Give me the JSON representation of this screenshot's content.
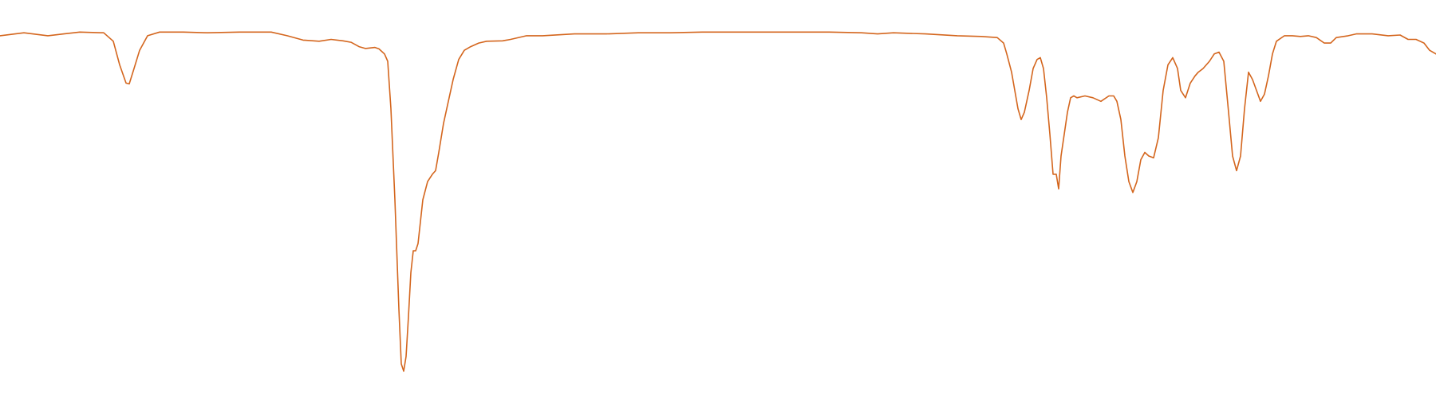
{
  "chart_data": {
    "type": "line",
    "title": "",
    "xlabel": "",
    "ylabel": "",
    "xlim": [
      0,
      1800
    ],
    "ylim": [
      0,
      100
    ],
    "grid": false,
    "legend": "none",
    "axes_visible": false,
    "series": [
      {
        "color": "#d4661e",
        "points": [
          [
            0,
            95.0
          ],
          [
            30,
            95.8
          ],
          [
            60,
            95.0
          ],
          [
            80,
            95.5
          ],
          [
            100,
            96.0
          ],
          [
            130,
            95.8
          ],
          [
            142,
            93.5
          ],
          [
            150,
            87.0
          ],
          [
            158,
            82.0
          ],
          [
            162,
            81.8
          ],
          [
            168,
            86.0
          ],
          [
            175,
            91.0
          ],
          [
            185,
            95.0
          ],
          [
            200,
            96.0
          ],
          [
            230,
            96.0
          ],
          [
            260,
            95.8
          ],
          [
            300,
            96.0
          ],
          [
            340,
            96.0
          ],
          [
            360,
            95.0
          ],
          [
            380,
            93.8
          ],
          [
            400,
            93.5
          ],
          [
            415,
            94.0
          ],
          [
            430,
            93.6
          ],
          [
            440,
            93.2
          ],
          [
            450,
            92.0
          ],
          [
            458,
            91.5
          ],
          [
            470,
            91.8
          ],
          [
            475,
            91.4
          ],
          [
            482,
            90.0
          ],
          [
            486,
            88.0
          ],
          [
            490,
            75.0
          ],
          [
            495,
            50.0
          ],
          [
            500,
            20.0
          ],
          [
            503,
            5.0
          ],
          [
            506,
            3.0
          ],
          [
            509,
            7.0
          ],
          [
            512,
            18.0
          ],
          [
            515,
            30.0
          ],
          [
            518,
            36.0
          ],
          [
            521,
            36.0
          ],
          [
            524,
            38.0
          ],
          [
            530,
            50.0
          ],
          [
            536,
            55.0
          ],
          [
            542,
            57.0
          ],
          [
            546,
            58.0
          ],
          [
            550,
            63.0
          ],
          [
            556,
            71.0
          ],
          [
            562,
            77.0
          ],
          [
            568,
            83.0
          ],
          [
            575,
            88.5
          ],
          [
            582,
            91.0
          ],
          [
            590,
            92.0
          ],
          [
            600,
            93.0
          ],
          [
            610,
            93.5
          ],
          [
            630,
            93.6
          ],
          [
            640,
            94.0
          ],
          [
            660,
            95.0
          ],
          [
            680,
            95.0
          ],
          [
            720,
            95.5
          ],
          [
            760,
            95.5
          ],
          [
            800,
            95.8
          ],
          [
            840,
            95.8
          ],
          [
            880,
            96.0
          ],
          [
            920,
            96.0
          ],
          [
            960,
            96.0
          ],
          [
            1000,
            96.0
          ],
          [
            1040,
            96.0
          ],
          [
            1080,
            95.8
          ],
          [
            1100,
            95.5
          ],
          [
            1120,
            95.8
          ],
          [
            1160,
            95.5
          ],
          [
            1200,
            95.0
          ],
          [
            1230,
            94.8
          ],
          [
            1250,
            94.5
          ],
          [
            1258,
            93.0
          ],
          [
            1262,
            90.0
          ],
          [
            1268,
            85.0
          ],
          [
            1272,
            80.0
          ],
          [
            1276,
            75.0
          ],
          [
            1280,
            72.0
          ],
          [
            1284,
            74.0
          ],
          [
            1290,
            80.0
          ],
          [
            1295,
            86.0
          ],
          [
            1300,
            88.5
          ],
          [
            1304,
            89.0
          ],
          [
            1308,
            86.0
          ],
          [
            1312,
            78.0
          ],
          [
            1316,
            68.0
          ],
          [
            1320,
            57.0
          ],
          [
            1324,
            57.0
          ],
          [
            1327,
            53.0
          ],
          [
            1330,
            62.0
          ],
          [
            1334,
            68.0
          ],
          [
            1338,
            74.0
          ],
          [
            1342,
            78.0
          ],
          [
            1346,
            78.5
          ],
          [
            1350,
            78.0
          ],
          [
            1360,
            78.5
          ],
          [
            1370,
            78.0
          ],
          [
            1380,
            77.0
          ],
          [
            1390,
            78.5
          ],
          [
            1396,
            78.5
          ],
          [
            1400,
            77.0
          ],
          [
            1405,
            72.0
          ],
          [
            1410,
            62.0
          ],
          [
            1415,
            55.0
          ],
          [
            1420,
            52.0
          ],
          [
            1425,
            55.0
          ],
          [
            1430,
            61.0
          ],
          [
            1435,
            63.0
          ],
          [
            1440,
            62.0
          ],
          [
            1446,
            61.5
          ],
          [
            1452,
            67.0
          ],
          [
            1458,
            80.0
          ],
          [
            1464,
            87.0
          ],
          [
            1470,
            89.0
          ],
          [
            1476,
            86.0
          ],
          [
            1480,
            80.0
          ],
          [
            1486,
            78.0
          ],
          [
            1492,
            82.0
          ],
          [
            1498,
            84.0
          ],
          [
            1502,
            85.0
          ],
          [
            1508,
            86.0
          ],
          [
            1516,
            88.0
          ],
          [
            1522,
            90.0
          ],
          [
            1528,
            90.5
          ],
          [
            1534,
            88.0
          ],
          [
            1540,
            74.0
          ],
          [
            1545,
            62.0
          ],
          [
            1550,
            58.0
          ],
          [
            1555,
            62.0
          ],
          [
            1560,
            75.0
          ],
          [
            1565,
            85.0
          ],
          [
            1570,
            83.0
          ],
          [
            1575,
            80.0
          ],
          [
            1580,
            77.0
          ],
          [
            1585,
            79.0
          ],
          [
            1590,
            84.0
          ],
          [
            1595,
            90.0
          ],
          [
            1600,
            93.5
          ],
          [
            1610,
            95.0
          ],
          [
            1620,
            95.0
          ],
          [
            1630,
            94.8
          ],
          [
            1640,
            95.0
          ],
          [
            1650,
            94.5
          ],
          [
            1660,
            93.0
          ],
          [
            1668,
            93.0
          ],
          [
            1675,
            94.5
          ],
          [
            1690,
            95.0
          ],
          [
            1700,
            95.5
          ],
          [
            1720,
            95.5
          ],
          [
            1740,
            95.0
          ],
          [
            1755,
            95.2
          ],
          [
            1765,
            94.0
          ],
          [
            1775,
            94.0
          ],
          [
            1785,
            93.0
          ],
          [
            1792,
            91.0
          ],
          [
            1800,
            90.0
          ]
        ]
      }
    ]
  }
}
